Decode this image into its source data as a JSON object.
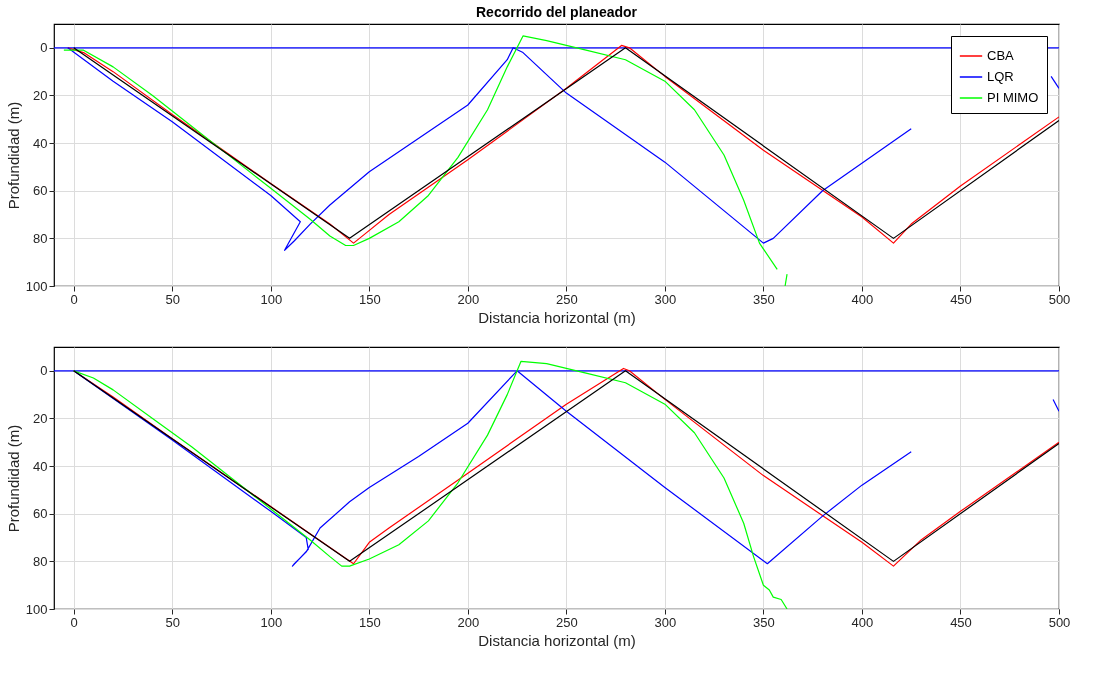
{
  "chart_data": [
    {
      "type": "line",
      "title": "Recorrido del planeador",
      "xlabel": "Distancia horizontal (m)",
      "ylabel": "Profundidad (m)",
      "xlim": [
        -10,
        500
      ],
      "xticks": [
        0,
        50,
        100,
        150,
        200,
        250,
        300,
        350,
        400,
        450,
        500
      ],
      "ylim": [
        100,
        -10
      ],
      "yticks": [
        0,
        20,
        40,
        60,
        80,
        100
      ],
      "grid": true,
      "legend": "top right",
      "ref_lines": [
        {
          "axis": "y",
          "value": 0,
          "color": "#0000ff"
        }
      ],
      "series": [
        {
          "name": "CBA",
          "color": "#ff0000",
          "x": [
            -3,
            5,
            20,
            50,
            100,
            130,
            142,
            148,
            160,
            200,
            250,
            278,
            282,
            300,
            350,
            400,
            416,
            425,
            450,
            500
          ],
          "values": [
            0,
            2,
            10,
            28,
            57,
            74,
            82,
            78,
            70,
            47,
            17,
            -1,
            0,
            12,
            43,
            71,
            82,
            74,
            58,
            29
          ]
        },
        {
          "name": "LQR",
          "color": "#0000ff",
          "x": [
            -3,
            20,
            50,
            100,
            115,
            107,
            112,
            120,
            130,
            150,
            200,
            220,
            223,
            228,
            250,
            300,
            350,
            355,
            380,
            425,
            null,
            496,
            500
          ],
          "values": [
            0,
            14,
            31,
            62,
            73,
            85,
            81,
            74,
            66,
            52,
            24,
            5,
            0,
            2,
            19,
            48,
            82,
            80,
            60,
            34,
            null,
            12,
            17
          ]
        },
        {
          "name": "PI MIMO",
          "color": "#00ff00",
          "x": [
            -5,
            5,
            20,
            40,
            60,
            80,
            100,
            120,
            130,
            138,
            142,
            150,
            165,
            180,
            195,
            210,
            220,
            228,
            240,
            260,
            280,
            300,
            315,
            330,
            340,
            348,
            357,
            null,
            362,
            361
          ],
          "values": [
            1,
            1,
            8,
            20,
            33,
            46,
            59,
            72,
            79,
            83,
            83,
            80,
            73,
            62,
            46,
            26,
            8,
            -5,
            -3,
            1,
            5,
            14,
            26,
            45,
            64,
            82,
            93,
            null,
            95,
            100
          ]
        },
        {
          "color": "#000000",
          "x": [
            0,
            140,
            280,
            416,
            500
          ],
          "values": [
            0,
            80,
            0,
            80,
            30.5
          ]
        }
      ]
    },
    {
      "type": "line",
      "xlabel": "Distancia horizontal (m)",
      "ylabel": "Profundidad (m)",
      "xlim": [
        -10,
        500
      ],
      "xticks": [
        0,
        50,
        100,
        150,
        200,
        250,
        300,
        350,
        400,
        450,
        500
      ],
      "ylim": [
        100,
        -10
      ],
      "yticks": [
        0,
        20,
        40,
        60,
        80,
        100
      ],
      "grid": true,
      "legend": "top right",
      "ref_lines": [
        {
          "axis": "y",
          "value": 0,
          "color": "#0000ff"
        }
      ],
      "series": [
        {
          "name": "CBA",
          "color": "#ff0000",
          "x": [
            0,
            20,
            50,
            100,
            142,
            150,
            160,
            200,
            250,
            279,
            282,
            300,
            350,
            400,
            416,
            430,
            450,
            500
          ],
          "values": [
            0,
            11,
            28.5,
            57,
            81,
            72,
            66,
            43,
            14,
            -1,
            0,
            12,
            44,
            72,
            82,
            71,
            59,
            30
          ]
        },
        {
          "name": "LQR",
          "color": "#0000ff",
          "x": [
            0,
            50,
            100,
            118,
            119,
            111,
            112,
            118,
            125,
            140,
            150,
            175,
            200,
            225,
            250,
            300,
            352,
            380,
            400,
            425,
            null,
            497,
            500
          ],
          "values": [
            0,
            29,
            59,
            70,
            75,
            82,
            81,
            76,
            66,
            55,
            49,
            36,
            22,
            0,
            17,
            49,
            81,
            61,
            48,
            34,
            null,
            12,
            17
          ]
        },
        {
          "name": "PI MIMO",
          "color": "#00ff00",
          "x": [
            0,
            10,
            20,
            40,
            60,
            80,
            100,
            120,
            130,
            136,
            140,
            150,
            165,
            180,
            195,
            210,
            220,
            227,
            240,
            260,
            280,
            300,
            315,
            330,
            340,
            345,
            350,
            353,
            355,
            359,
            362
          ],
          "values": [
            0,
            3,
            8,
            20,
            32,
            45,
            58,
            71,
            78,
            82,
            82,
            79,
            73,
            63,
            47,
            27,
            10,
            -4,
            -3,
            1,
            5,
            14,
            26,
            45,
            64,
            78,
            90,
            92,
            95,
            96,
            100
          ]
        },
        {
          "color": "#000000",
          "x": [
            0,
            140,
            280,
            416,
            500
          ],
          "values": [
            0,
            80,
            0,
            80,
            30.5
          ]
        }
      ]
    }
  ]
}
